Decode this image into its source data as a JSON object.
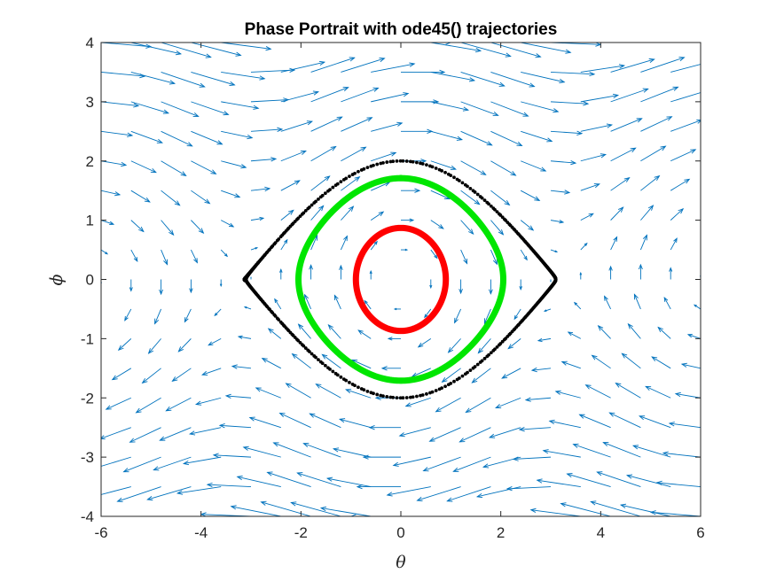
{
  "chart_data": {
    "type": "scatter",
    "title": "Phase Portrait with ode45() trajectories",
    "xlabel": "θ",
    "ylabel": "ϕ",
    "xlim": [
      -6,
      6
    ],
    "ylim": [
      -4,
      4
    ],
    "xticks": [
      -6,
      -4,
      -2,
      0,
      2,
      4,
      6
    ],
    "yticks": [
      -4,
      -3,
      -2,
      -1,
      0,
      1,
      2,
      3,
      4
    ],
    "grid": false,
    "vector_field": {
      "equation": "dθ/dt = ϕ, dϕ/dt = -sin(θ)",
      "x_step": 0.6,
      "y_step": 0.5,
      "color": "#0072BD"
    },
    "series": [
      {
        "name": "",
        "color": "#FF0000",
        "style": "thick-markers",
        "theta0": 0.9,
        "phi0": 0
      },
      {
        "name": "",
        "color": "#00E600",
        "style": "thick-markers",
        "theta0": 2.05,
        "phi0": 0
      },
      {
        "name": "",
        "color": "#000000",
        "style": "dots",
        "theta0": 3.1,
        "phi0": 0
      }
    ],
    "colors": {
      "axes": "#262626",
      "background": "#ffffff"
    }
  }
}
